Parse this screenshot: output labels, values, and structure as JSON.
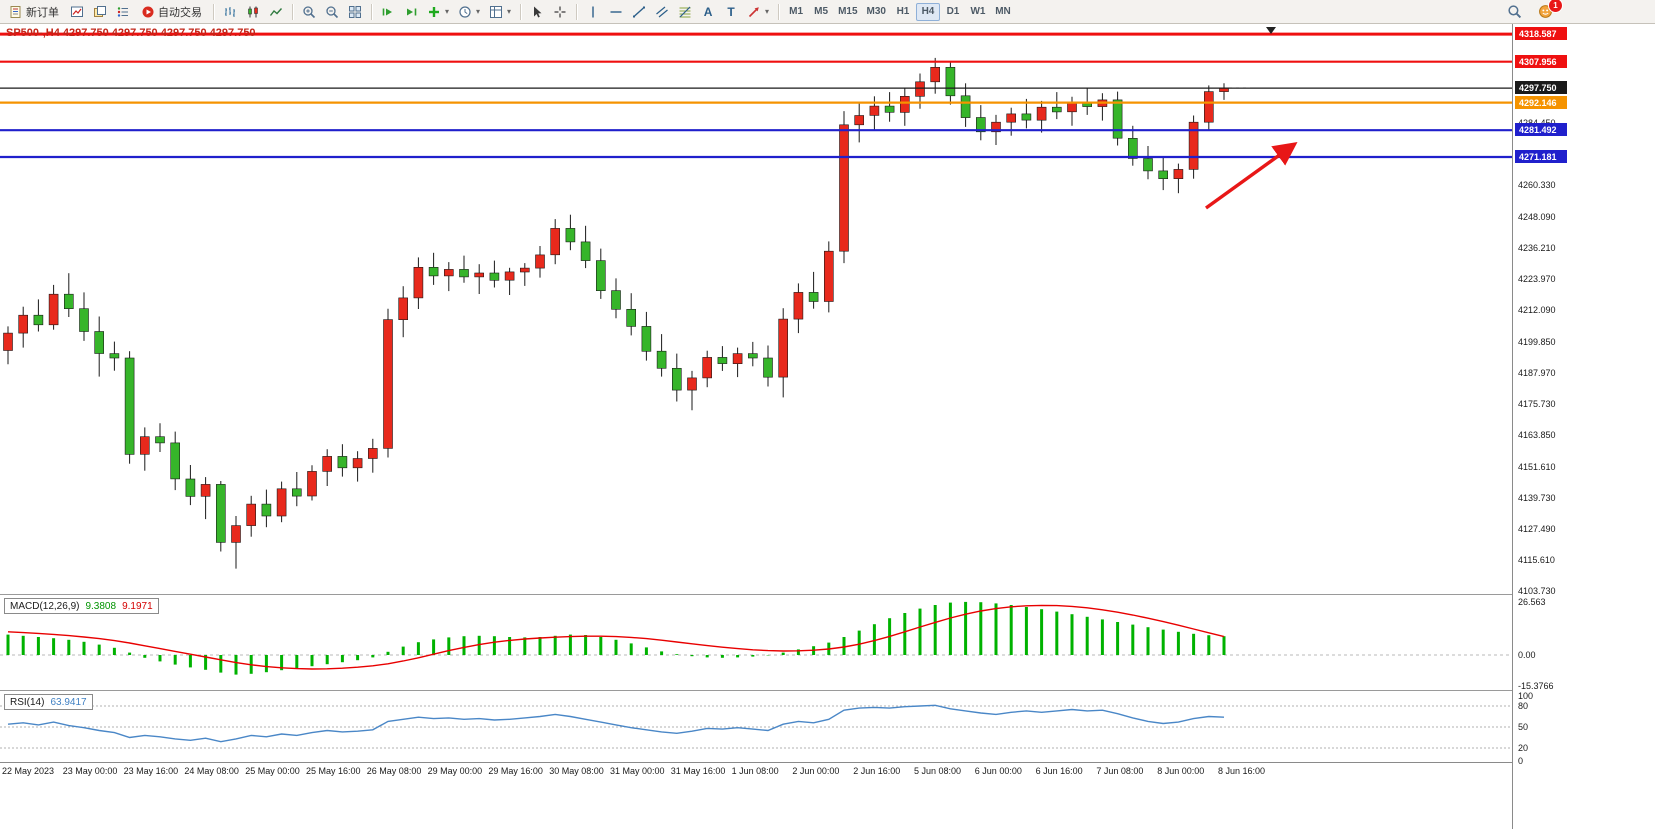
{
  "toolbar": {
    "new_order": "新订单",
    "auto_trading": "自动交易",
    "text_tool": "A",
    "label_tool": "T",
    "timeframes": [
      "M1",
      "M5",
      "M15",
      "M30",
      "H1",
      "H4",
      "D1",
      "W1",
      "MN"
    ],
    "active_timeframe": "H4",
    "notification_count": "1"
  },
  "chart": {
    "title": "SP500-,H4 4297.750 4297.750 4297.750 4297.750",
    "symbol": "SP500-",
    "period": "H4",
    "price_max": 4322.5,
    "price_min": 4102.5,
    "levels": [
      {
        "price": 4318.587,
        "label": "4318.587",
        "color": "#ef1010",
        "width": 3,
        "type": "resistance"
      },
      {
        "price": 4307.956,
        "label": "4307.956",
        "color": "#ef1010",
        "width": 2.2,
        "type": "resistance"
      },
      {
        "price": 4297.75,
        "label": "4297.750",
        "color": "#1a1a1a",
        "width": 1.2,
        "type": "current-price"
      },
      {
        "price": 4292.146,
        "label": "4292.146",
        "color": "#f59300",
        "width": 2.2,
        "type": "level"
      },
      {
        "price": 4281.492,
        "label": "4281.492",
        "color": "#2020cc",
        "width": 2.2,
        "type": "support"
      },
      {
        "price": 4271.181,
        "label": "4271.181",
        "color": "#2020cc",
        "width": 2.2,
        "type": "support"
      }
    ],
    "axis_labels": [
      "4284.450",
      "4260.330",
      "4248.090",
      "4236.210",
      "4223.970",
      "4212.090",
      "4199.850",
      "4187.970",
      "4175.730",
      "4163.850",
      "4151.610",
      "4139.730",
      "4127.490",
      "4115.610",
      "4103.730"
    ]
  },
  "macd": {
    "label": "MACD(12,26,9)",
    "main_value": "9.3808",
    "signal_value": "9.1971",
    "axis_labels": [
      "26.563",
      "0.00",
      "-15.3766"
    ],
    "axis_values": [
      26.563,
      0,
      -15.3766
    ]
  },
  "rsi": {
    "label": "RSI(14)",
    "value": "63.9417",
    "axis_labels": [
      "100",
      "80",
      "50",
      "20",
      "0"
    ],
    "axis_values": [
      100,
      80,
      50,
      20,
      0
    ],
    "levels": [
      80,
      50,
      20
    ]
  },
  "time_axis": [
    "22 May 2023",
    "23 May 00:00",
    "23 May 16:00",
    "24 May 08:00",
    "25 May 00:00",
    "25 May 16:00",
    "26 May 08:00",
    "29 May 00:00",
    "29 May 16:00",
    "30 May 08:00",
    "31 May 00:00",
    "31 May 16:00",
    "1 Jun 08:00",
    "2 Jun 00:00",
    "2 Jun 16:00",
    "5 Jun 08:00",
    "6 Jun 00:00",
    "6 Jun 16:00",
    "7 Jun 08:00",
    "8 Jun 00:00",
    "8 Jun 16:00"
  ],
  "chart_data": {
    "type": "candlestick",
    "symbol": "SP500-",
    "timeframe": "H4",
    "colors": {
      "up": "#e8291c",
      "down": "#36b52a",
      "wick": "#1a1a1a",
      "macd_histogram": "#00b200",
      "macd_signal": "#e80000",
      "rsi_line": "#4a87c7",
      "annotation_arrow": "#e81717"
    },
    "candles": [
      [
        4196.5,
        4205.8,
        4191.2,
        4203.2
      ],
      [
        4203.2,
        4213.4,
        4197.6,
        4210.1
      ],
      [
        4210.1,
        4216.2,
        4203.8,
        4206.4
      ],
      [
        4206.4,
        4221.8,
        4204.5,
        4218.2
      ],
      [
        4218.2,
        4226.3,
        4209.4,
        4212.6
      ],
      [
        4212.6,
        4218.9,
        4200.2,
        4203.8
      ],
      [
        4203.8,
        4209.6,
        4186.4,
        4195.3
      ],
      [
        4195.3,
        4199.9,
        4188.7,
        4193.6
      ],
      [
        4193.6,
        4196.2,
        4152.8,
        4156.4
      ],
      [
        4156.4,
        4166.8,
        4150.1,
        4163.2
      ],
      [
        4163.2,
        4168.4,
        4157.3,
        4160.8
      ],
      [
        4160.8,
        4165.2,
        4142.6,
        4146.9
      ],
      [
        4146.9,
        4152.3,
        4136.8,
        4140.2
      ],
      [
        4140.2,
        4147.6,
        4131.4,
        4144.8
      ],
      [
        4144.8,
        4146.1,
        4118.9,
        4122.4
      ],
      [
        4122.4,
        4132.6,
        4112.3,
        4128.9
      ],
      [
        4128.9,
        4140.4,
        4124.6,
        4137.2
      ],
      [
        4137.2,
        4142.8,
        4128.3,
        4132.6
      ],
      [
        4132.6,
        4145.9,
        4130.2,
        4143.1
      ],
      [
        4143.1,
        4149.6,
        4136.4,
        4140.3
      ],
      [
        4140.3,
        4152.2,
        4138.6,
        4149.8
      ],
      [
        4149.8,
        4158.4,
        4144.2,
        4155.6
      ],
      [
        4155.6,
        4160.3,
        4147.8,
        4151.2
      ],
      [
        4151.2,
        4157.6,
        4145.9,
        4154.8
      ],
      [
        4154.8,
        4162.4,
        4149.3,
        4158.7
      ],
      [
        4158.7,
        4212.6,
        4155.2,
        4208.4
      ],
      [
        4208.4,
        4221.3,
        4201.6,
        4216.8
      ],
      [
        4216.8,
        4232.4,
        4212.5,
        4228.6
      ],
      [
        4228.6,
        4234.2,
        4221.8,
        4225.3
      ],
      [
        4225.3,
        4230.6,
        4219.4,
        4227.8
      ],
      [
        4227.8,
        4233.1,
        4222.6,
        4224.9
      ],
      [
        4224.9,
        4229.8,
        4218.3,
        4226.4
      ],
      [
        4226.4,
        4231.2,
        4220.8,
        4223.6
      ],
      [
        4223.6,
        4228.4,
        4217.9,
        4226.8
      ],
      [
        4226.8,
        4230.2,
        4221.4,
        4228.3
      ],
      [
        4228.3,
        4236.8,
        4224.6,
        4233.4
      ],
      [
        4233.4,
        4247.2,
        4229.8,
        4243.6
      ],
      [
        4243.6,
        4248.9,
        4235.2,
        4238.4
      ],
      [
        4238.4,
        4244.6,
        4228.3,
        4231.2
      ],
      [
        4231.2,
        4235.8,
        4216.4,
        4219.6
      ],
      [
        4219.6,
        4224.3,
        4208.9,
        4212.4
      ],
      [
        4212.4,
        4218.6,
        4202.3,
        4205.8
      ],
      [
        4205.8,
        4211.4,
        4192.6,
        4196.2
      ],
      [
        4196.2,
        4202.8,
        4186.4,
        4189.6
      ],
      [
        4189.6,
        4195.3,
        4176.8,
        4181.2
      ],
      [
        4181.2,
        4188.6,
        4173.4,
        4185.9
      ],
      [
        4185.9,
        4196.4,
        4182.3,
        4193.8
      ],
      [
        4193.8,
        4198.2,
        4188.6,
        4191.4
      ],
      [
        4191.4,
        4197.6,
        4186.2,
        4195.3
      ],
      [
        4195.3,
        4199.8,
        4190.4,
        4193.6
      ],
      [
        4193.6,
        4198.4,
        4182.6,
        4186.2
      ],
      [
        4186.2,
        4212.8,
        4178.4,
        4208.6
      ],
      [
        4208.6,
        4222.4,
        4203.2,
        4218.9
      ],
      [
        4218.9,
        4226.8,
        4212.6,
        4215.4
      ],
      [
        4215.4,
        4238.6,
        4211.2,
        4234.8
      ],
      [
        4234.8,
        4288.9,
        4230.2,
        4283.6
      ],
      [
        4283.6,
        4292.4,
        4276.8,
        4287.2
      ],
      [
        4287.2,
        4294.6,
        4281.4,
        4290.8
      ],
      [
        4290.8,
        4296.2,
        4284.8,
        4288.4
      ],
      [
        4288.4,
        4297.8,
        4283.2,
        4294.6
      ],
      [
        4294.6,
        4303.4,
        4289.8,
        4300.2
      ],
      [
        4300.2,
        4309.4,
        4295.6,
        4305.8
      ],
      [
        4305.8,
        4308.2,
        4291.4,
        4294.8
      ],
      [
        4294.8,
        4299.6,
        4282.8,
        4286.4
      ],
      [
        4286.4,
        4291.2,
        4277.6,
        4280.9
      ],
      [
        4280.9,
        4287.4,
        4275.8,
        4284.6
      ],
      [
        4284.6,
        4290.2,
        4279.4,
        4287.8
      ],
      [
        4287.8,
        4293.6,
        4282.2,
        4285.4
      ],
      [
        4285.4,
        4292.8,
        4280.6,
        4290.4
      ],
      [
        4290.4,
        4296.2,
        4285.8,
        4288.6
      ],
      [
        4288.6,
        4294.4,
        4283.2,
        4292.2
      ],
      [
        4292.2,
        4297.6,
        4287.4,
        4290.6
      ],
      [
        4290.6,
        4295.8,
        4285.2,
        4293.2
      ],
      [
        4293.2,
        4296.4,
        4275.6,
        4278.4
      ],
      [
        4278.4,
        4283.2,
        4267.8,
        4270.6
      ],
      [
        4270.6,
        4275.4,
        4262.6,
        4265.8
      ],
      [
        4265.8,
        4271.2,
        4258.4,
        4262.8
      ],
      [
        4262.8,
        4268.6,
        4257.2,
        4266.4
      ],
      [
        4266.4,
        4287.2,
        4262.8,
        4284.6
      ],
      [
        4284.6,
        4298.8,
        4281.2,
        4296.4
      ],
      [
        4296.4,
        4299.6,
        4293.2,
        4297.75
      ]
    ],
    "macd_histogram": [
      10.2,
      9.6,
      9.0,
      8.4,
      7.6,
      6.6,
      5.2,
      3.6,
      1.2,
      -1.4,
      -3.2,
      -4.8,
      -6.2,
      -7.4,
      -8.8,
      -9.8,
      -9.4,
      -8.6,
      -7.6,
      -6.6,
      -5.6,
      -4.6,
      -3.6,
      -2.6,
      -1.2,
      1.6,
      4.2,
      6.4,
      7.8,
      8.8,
      9.4,
      9.6,
      9.4,
      9.0,
      8.8,
      9.0,
      9.6,
      10.2,
      10.0,
      9.0,
      7.6,
      5.8,
      3.8,
      1.8,
      0.4,
      -0.6,
      -1.2,
      -1.4,
      -1.2,
      -0.8,
      -0.2,
      1.2,
      2.8,
      4.4,
      6.2,
      9.0,
      12.2,
      15.4,
      18.4,
      21.0,
      23.2,
      25.0,
      26.2,
      26.56,
      26.4,
      25.8,
      25.0,
      24.0,
      22.9,
      21.7,
      20.4,
      19.1,
      17.8,
      16.5,
      15.2,
      13.9,
      12.7,
      11.6,
      10.6,
      9.9,
      9.38
    ],
    "macd_signal": [
      11.6,
      11.2,
      10.8,
      10.3,
      9.7,
      9.0,
      8.2,
      7.2,
      6.0,
      4.6,
      3.2,
      1.8,
      0.4,
      -1.0,
      -2.4,
      -3.8,
      -4.9,
      -5.8,
      -6.4,
      -6.8,
      -7.0,
      -6.9,
      -6.6,
      -6.1,
      -5.4,
      -4.4,
      -3.0,
      -1.4,
      0.4,
      2.2,
      3.8,
      5.2,
      6.4,
      7.3,
      8.0,
      8.5,
      8.9,
      9.2,
      9.4,
      9.4,
      9.2,
      8.8,
      8.2,
      7.4,
      6.5,
      5.6,
      4.7,
      3.9,
      3.2,
      2.6,
      2.2,
      2.0,
      2.1,
      2.4,
      3.0,
      4.0,
      5.4,
      7.2,
      9.3,
      11.6,
      14.0,
      16.3,
      18.5,
      20.4,
      22.0,
      23.2,
      24.1,
      24.6,
      24.8,
      24.7,
      24.3,
      23.6,
      22.6,
      21.4,
      20.0,
      18.4,
      16.7,
      14.9,
      13.0,
      11.1,
      9.2
    ],
    "rsi_values": [
      54,
      56,
      53,
      57,
      52,
      49,
      45,
      42,
      35,
      38,
      36,
      33,
      31,
      34,
      29,
      33,
      38,
      36,
      40,
      38,
      42,
      45,
      43,
      44,
      46,
      58,
      61,
      64,
      62,
      63,
      61,
      62,
      60,
      61,
      63,
      65,
      68,
      65,
      61,
      57,
      53,
      49,
      46,
      43,
      41,
      44,
      48,
      47,
      49,
      47,
      45,
      54,
      58,
      56,
      61,
      74,
      77,
      78,
      77,
      79,
      80,
      81,
      76,
      73,
      70,
      68,
      71,
      73,
      71,
      73,
      75,
      73,
      74,
      69,
      63,
      58,
      55,
      57,
      62,
      65,
      63.94
    ]
  }
}
